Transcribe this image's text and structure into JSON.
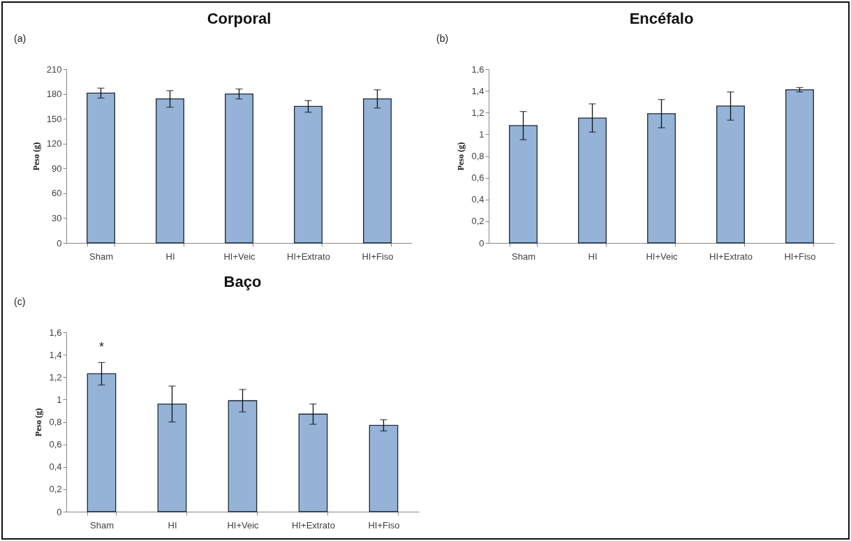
{
  "chart_data": [
    {
      "type": "bar",
      "title": "Corporal",
      "ylabel": "Peso (g)",
      "categories": [
        "Sham",
        "HI",
        "HI+Veic",
        "HI+Extrato",
        "HI+Fiso"
      ],
      "values": [
        181,
        174,
        180,
        165,
        174
      ],
      "errors": [
        6,
        10,
        6,
        7,
        11
      ],
      "color": "#95b3d7",
      "ylim": [
        0,
        210
      ],
      "yticks": [
        0,
        30,
        60,
        90,
        120,
        150,
        180,
        210
      ],
      "annotations": [
        "(a)"
      ]
    },
    {
      "type": "bar",
      "title": "Encéfalo",
      "ylabel": "Peso (g)",
      "categories": [
        "Sham",
        "HI",
        "HI+Veic",
        "HI+Extrato",
        "HI+Fiso"
      ],
      "values": [
        1.08,
        1.15,
        1.19,
        1.26,
        1.41
      ],
      "errors": [
        0.13,
        0.13,
        0.13,
        0.13,
        0.02
      ],
      "color": "#95b3d7",
      "ylim": [
        0,
        1.6
      ],
      "yticks": [
        0,
        {
          "value": 0.2,
          "label": "0,2"
        },
        {
          "value": 0.4,
          "label": "0,4"
        },
        {
          "value": 0.6,
          "label": "0,6"
        },
        {
          "value": 0.8,
          "label": "0,8"
        },
        1,
        {
          "value": 1.2,
          "label": "1,2"
        },
        {
          "value": 1.4,
          "label": "1,4"
        },
        {
          "value": 1.6,
          "label": "1,6"
        }
      ],
      "annotations": [
        "(b)"
      ]
    },
    {
      "type": "bar",
      "title": "Baço",
      "ylabel": "Peso (g)",
      "categories": [
        "Sham",
        "HI",
        "HI+Veic",
        "HI+Extrato",
        "HI+Fiso"
      ],
      "values": [
        1.23,
        0.96,
        0.99,
        0.87,
        0.77
      ],
      "errors": [
        0.1,
        0.16,
        0.1,
        0.09,
        0.05
      ],
      "color": "#95b3d7",
      "ylim": [
        0,
        1.6
      ],
      "yticks": [
        0,
        {
          "value": 0.2,
          "label": "0,2"
        },
        {
          "value": 0.4,
          "label": "0,4"
        },
        {
          "value": 0.6,
          "label": "0,6"
        },
        {
          "value": 0.8,
          "label": "0,8"
        },
        1,
        {
          "value": 1.2,
          "label": "1,2"
        },
        {
          "value": 1.4,
          "label": "1,4"
        },
        {
          "value": 1.6,
          "label": "1,6"
        }
      ],
      "annotations": [
        "(c)",
        "*"
      ]
    }
  ]
}
